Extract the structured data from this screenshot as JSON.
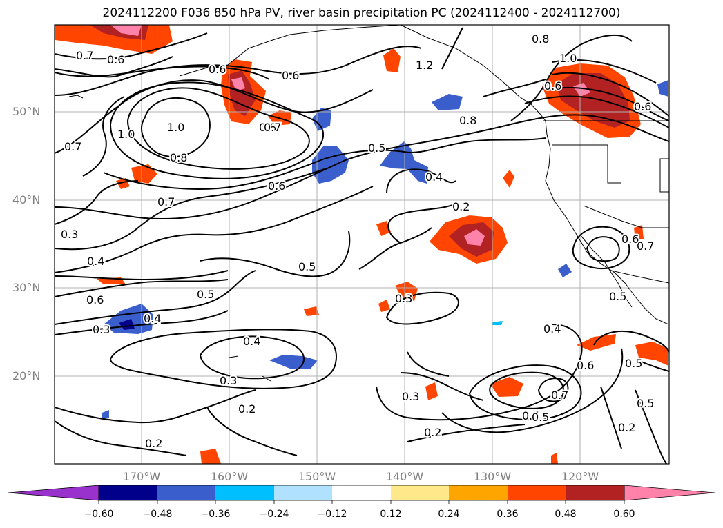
{
  "title": "2024112200 F036 850 hPa PV, river basin precipitation PC (2024112400 - 2024112700)",
  "lat_labels": [
    "50°N",
    "40°N",
    "30°N",
    "20°N"
  ],
  "lon_labels": [
    "170°W",
    "160°W",
    "150°W",
    "140°W",
    "130°W",
    "120°W"
  ],
  "contour_labels": [
    "0.7",
    "0.6",
    "0.6",
    "0.6",
    "0.7",
    "0.8",
    "1.0",
    "0.8",
    "0.6",
    "0.7",
    "1.0",
    "1.2",
    "0.8",
    "0.8",
    "0.5",
    "0.4",
    "0.6",
    "0.7",
    "0.2",
    "0.3",
    "0.4",
    "0.6",
    "0.3",
    "0.5",
    "0.5",
    "0.3",
    "0.4",
    "0.4",
    "0.3",
    "0.2",
    "0.3",
    "0.2",
    "0.4",
    "0.6",
    "0.5",
    "0.7",
    "0.5",
    "0.2",
    "0.5",
    "0.5",
    "0.6",
    "0.7",
    "0.2",
    "1.0",
    "0.6",
    "0.5"
  ],
  "colorbar": {
    "ticks": [
      "−0.60",
      "−0.48",
      "−0.36",
      "−0.24",
      "−0.12",
      "0.12",
      "0.24",
      "0.36",
      "0.48",
      "0.60"
    ],
    "colors": [
      "#9932cc",
      "#00008b",
      "#3a5fcd",
      "#00bfff",
      "#b0e2ff",
      "#ffffff",
      "#ffe88a",
      "#ffa500",
      "#ff4500",
      "#b22222",
      "#ff82ab"
    ]
  }
}
